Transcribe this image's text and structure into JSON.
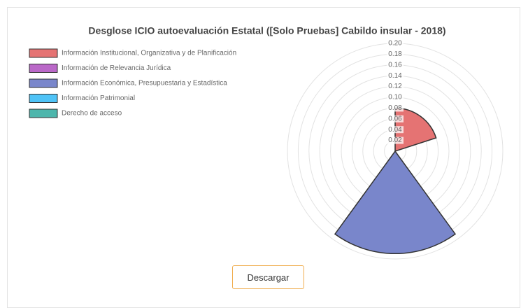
{
  "chart_data": {
    "type": "polarArea",
    "title": "Desglose ICIO autoevaluación Estatal ([Solo Pruebas] Cabildo insular - 2018)",
    "series": [
      {
        "name": "Información Institucional, Organizativa y de Planificación",
        "color": "#e57373",
        "values": [
          0.08
        ]
      },
      {
        "name": "Información de Relevancia Jurídica",
        "color": "#ba68c8",
        "values": [
          0
        ]
      },
      {
        "name": "Información Económica, Presupuestaria y Estadística",
        "color": "#7986cb",
        "values": [
          0.19
        ]
      },
      {
        "name": "Información Patrimonial",
        "color": "#4fc3f7",
        "values": [
          0
        ]
      },
      {
        "name": "Derecho de acceso",
        "color": "#4db6ac",
        "values": [
          0
        ]
      }
    ],
    "ylim": [
      0,
      0.2
    ],
    "yticks": [
      {
        "value": 0.02,
        "label": "0.02"
      },
      {
        "value": 0.04,
        "label": "0.04"
      },
      {
        "value": 0.06,
        "label": "0.06"
      },
      {
        "value": 0.08,
        "label": "0.08"
      },
      {
        "value": 0.1,
        "label": "0.10"
      },
      {
        "value": 0.12,
        "label": "0.12"
      },
      {
        "value": 0.14,
        "label": "0.14"
      },
      {
        "value": 0.16,
        "label": "0.16"
      },
      {
        "value": 0.18,
        "label": "0.18"
      },
      {
        "value": 0.2,
        "label": "0.20"
      }
    ],
    "grid": true,
    "legend": "top-left"
  },
  "download_button": "Descargar"
}
